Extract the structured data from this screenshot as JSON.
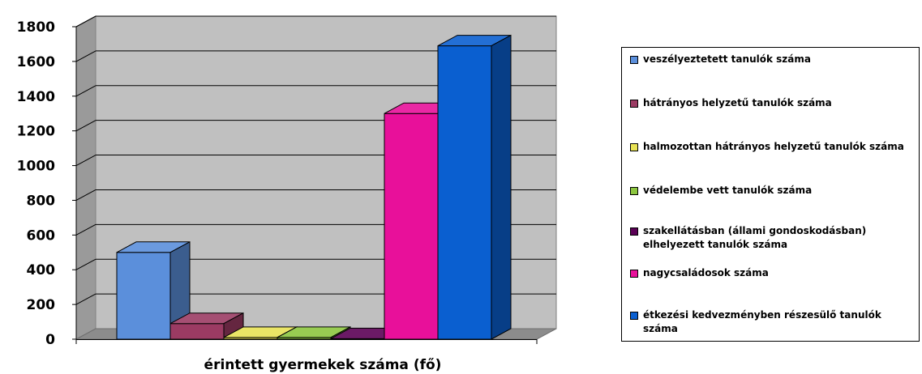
{
  "chart_data": {
    "type": "bar",
    "title": "",
    "xlabel": "érintett gyermekek száma (fő)",
    "ylabel": "",
    "ylim": [
      0,
      1800
    ],
    "yticks": [
      0,
      200,
      400,
      600,
      800,
      1000,
      1200,
      1400,
      1600,
      1800
    ],
    "grid": true,
    "legend_position": "right",
    "series": [
      {
        "name": "veszélyeztetett tanulók száma",
        "value": 500,
        "color": "#5B8FDB"
      },
      {
        "name": "hátrányos helyzetű tanulók száma",
        "value": 90,
        "color": "#9B3B63"
      },
      {
        "name": "halmozottan hátrányos helyzetű tanulók száma",
        "value": 10,
        "color": "#E8E255"
      },
      {
        "name": "védelembe vett tanulók száma",
        "value": 10,
        "color": "#8CC63F"
      },
      {
        "name": "szakellátásban (állami gondoskodásban)\nelhelyezett tanulók száma",
        "value": 3,
        "color": "#5A0055"
      },
      {
        "name": "nagycsaládosok száma",
        "value": 1300,
        "color": "#E8109A"
      },
      {
        "name": "étkezési kedvezményben részesülő tanulók\nszáma",
        "value": 1690,
        "color": "#0A5FD0"
      }
    ]
  }
}
